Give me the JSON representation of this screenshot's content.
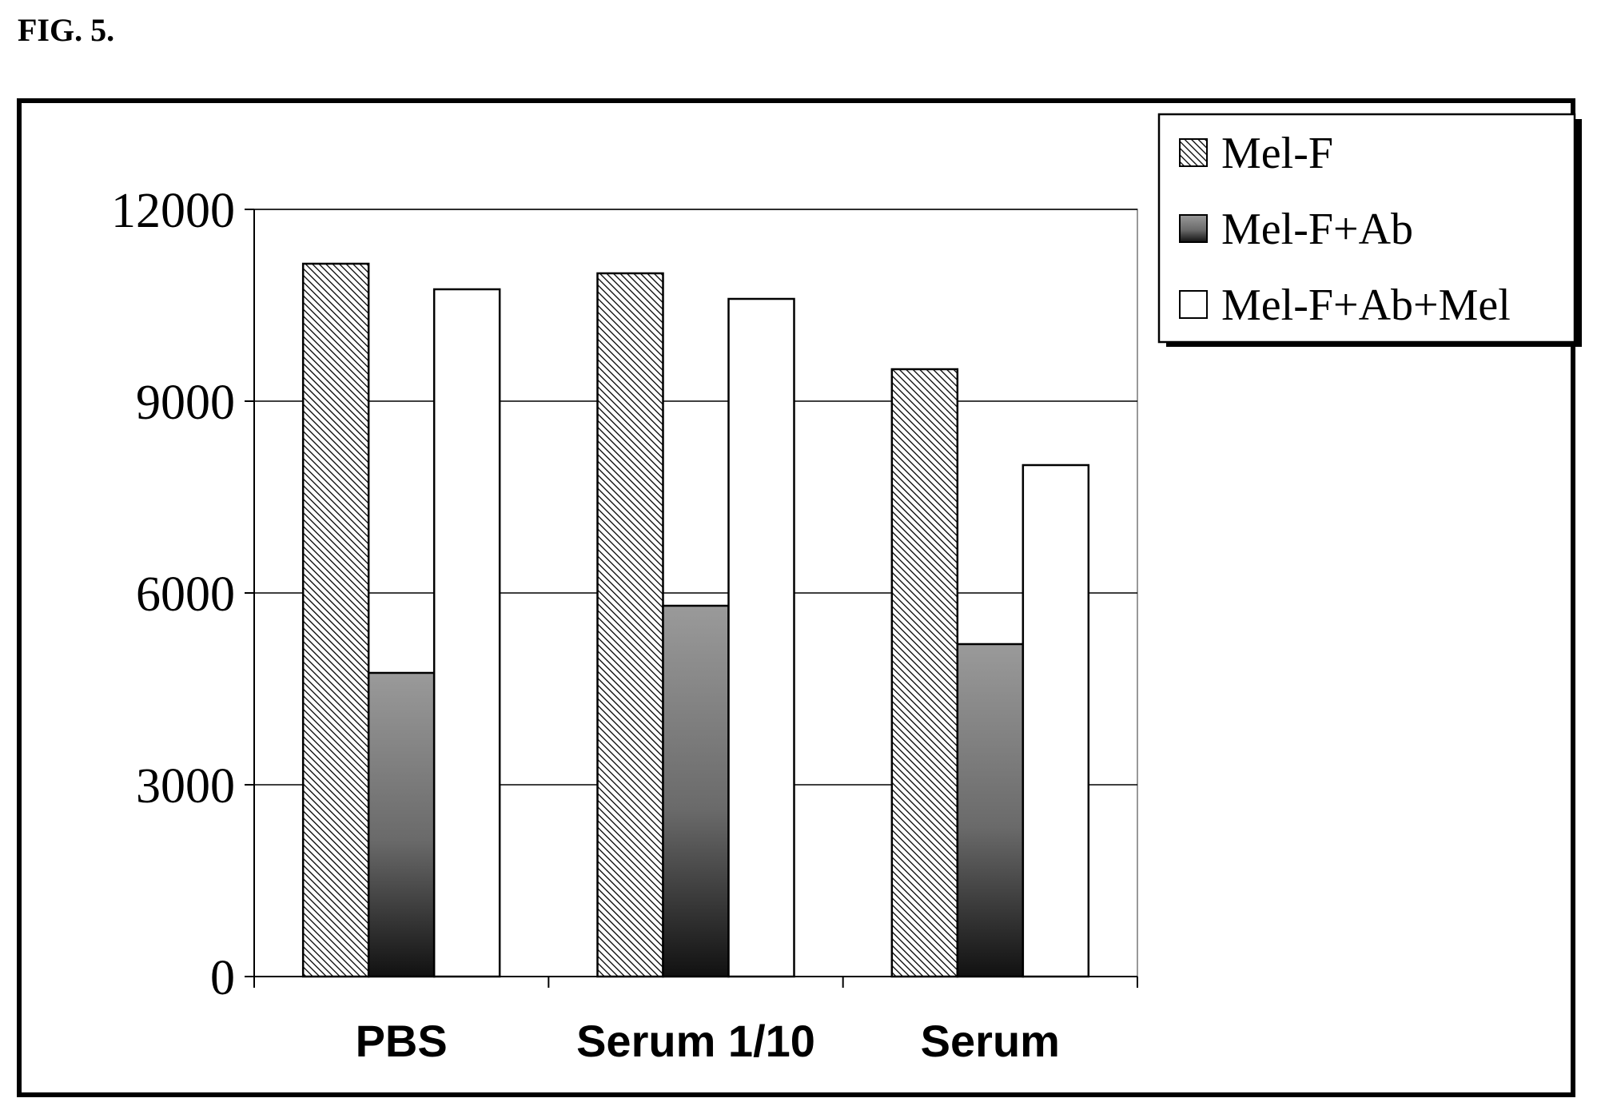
{
  "figure_label": "FIG. 5.",
  "chart_data": {
    "type": "bar",
    "categories": [
      "PBS",
      "Serum 1/10",
      "Serum"
    ],
    "series": [
      {
        "name": "Mel-F",
        "values": [
          11150,
          11000,
          9500
        ],
        "fill": "hatch"
      },
      {
        "name": "Mel-F+Ab",
        "values": [
          4750,
          5800,
          5200
        ],
        "fill": "gradient"
      },
      {
        "name": "Mel-F+Ab+Mel",
        "values": [
          10750,
          10600,
          8000
        ],
        "fill": "white"
      }
    ],
    "ylim": [
      0,
      12000
    ],
    "yticks": [
      0,
      3000,
      6000,
      9000,
      12000
    ],
    "ytick_labels": [
      "0",
      "3000",
      "6000",
      "9000",
      "12000"
    ],
    "grid": true,
    "legend_position": "top-right",
    "colors": {
      "axis": "#000000",
      "grid": "#000000",
      "gradient_top": "#9a9a9a",
      "gradient_bottom": "#1a1a1a"
    }
  }
}
